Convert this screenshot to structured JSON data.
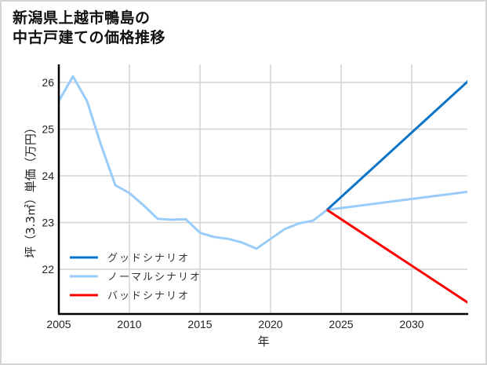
{
  "title": {
    "line1": "新潟県上越市鴨島の",
    "line2": "中古戸建ての価格推移"
  },
  "chart_data": {
    "type": "line",
    "title": "新潟県上越市鴨島の中古戸建ての価格推移",
    "xlabel": "年",
    "ylabel": "坪（3.3㎡）単価（万円）",
    "xlim": [
      2005,
      2034
    ],
    "ylim": [
      21.05,
      26.4
    ],
    "xticks": [
      2005,
      2010,
      2015,
      2020,
      2025,
      2030
    ],
    "yticks": [
      22,
      23,
      24,
      25,
      26
    ],
    "grid": true,
    "legend_position": "lower left",
    "series": [
      {
        "name": "グッドシナリオ",
        "color": "#0a74c8",
        "x": [
          2024,
          2034
        ],
        "values": [
          23.27,
          26.03
        ]
      },
      {
        "name": "ノーマルシナリオ",
        "color": "#99ccf8",
        "x": [
          2005,
          2006,
          2007,
          2008,
          2009,
          2010,
          2011,
          2012,
          2013,
          2014,
          2015,
          2016,
          2017,
          2018,
          2019,
          2020,
          2021,
          2022,
          2023,
          2024,
          2034
        ],
        "values": [
          25.6,
          26.13,
          25.6,
          24.65,
          23.8,
          23.63,
          23.37,
          23.08,
          23.06,
          23.07,
          22.78,
          22.69,
          22.65,
          22.57,
          22.44,
          22.65,
          22.86,
          22.98,
          23.04,
          23.27,
          23.66
        ]
      },
      {
        "name": "バッドシナリオ",
        "color": "#ff0000",
        "x": [
          2024,
          2034
        ],
        "values": [
          23.27,
          21.28
        ]
      }
    ]
  },
  "axes": {
    "xlabel": "年",
    "ylabel": "坪（3.3㎡）単価（万円）",
    "xticks": [
      "2005",
      "2010",
      "2015",
      "2020",
      "2025",
      "2030"
    ],
    "yticks": [
      "26",
      "25",
      "24",
      "23",
      "22"
    ]
  },
  "legend": [
    {
      "label": "グッドシナリオ",
      "color": "#0a74c8"
    },
    {
      "label": "ノーマルシナリオ",
      "color": "#99ccf8"
    },
    {
      "label": "バッドシナリオ",
      "color": "#ff0000"
    }
  ]
}
